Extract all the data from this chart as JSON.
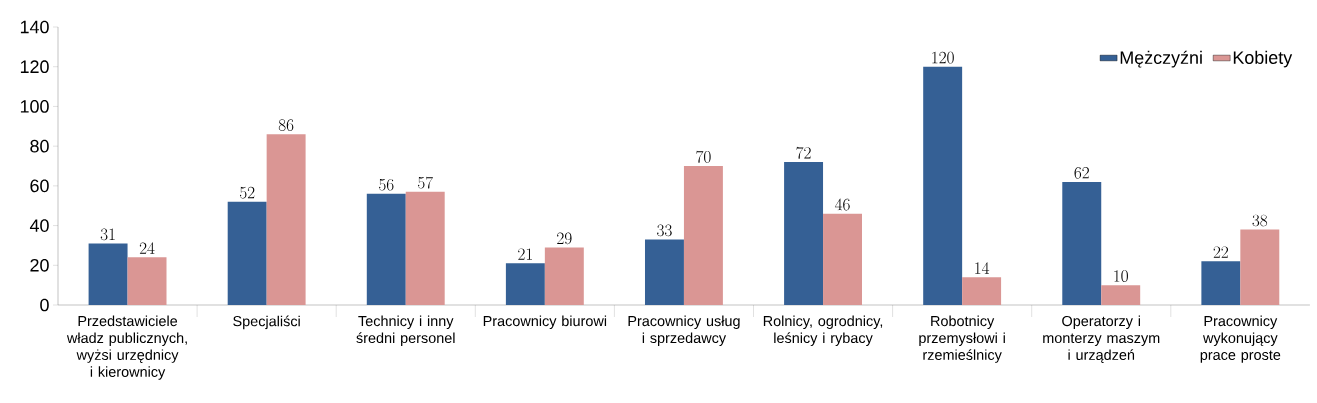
{
  "chart_data": {
    "type": "bar",
    "categories": [
      "Przedstawiciele władz publicznych, wyżsi urzędnicy i kierownicy",
      "Specjaliści",
      "Technicy i inny średni personel",
      "Pracownicy biurowi",
      "Pracownicy usług i sprzedawcy",
      "Rolnicy, ogrodnicy, leśnicy i rybacy",
      "Robotnicy przemysłowi i rzemieślnicy",
      "Operatorzy i monterzy maszym i urządzeń",
      "Pracownicy wykonujący prace proste"
    ],
    "series": [
      {
        "name": "Mężczyźni",
        "color": "#356095",
        "values": [
          31,
          52,
          56,
          21,
          33,
          72,
          120,
          62,
          22
        ]
      },
      {
        "name": "Kobiety",
        "color": "#da9694",
        "values": [
          24,
          86,
          57,
          29,
          70,
          46,
          14,
          10,
          38
        ]
      }
    ],
    "ylim": [
      0,
      140
    ],
    "yticks": [
      0,
      20,
      40,
      60,
      80,
      100,
      120,
      140
    ],
    "data_labels": true,
    "legend": "top right"
  }
}
